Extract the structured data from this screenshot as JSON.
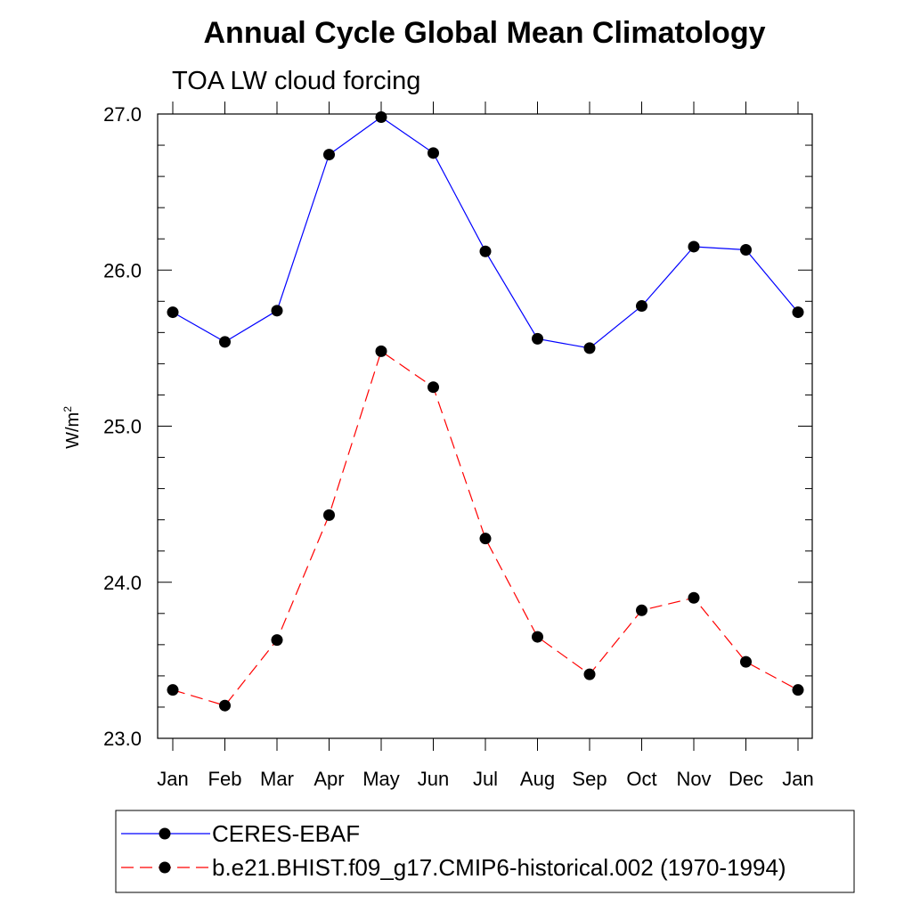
{
  "chart_data": {
    "type": "line",
    "title": "Annual Cycle Global Mean Climatology",
    "subtitle": "TOA LW cloud forcing",
    "ylabel": "W/m",
    "ylabel_sup": "2",
    "ylim": [
      23.0,
      27.0
    ],
    "yticks": [
      "23.0",
      "24.0",
      "25.0",
      "26.0",
      "27.0"
    ],
    "categories": [
      "Jan",
      "Feb",
      "Mar",
      "Apr",
      "May",
      "Jun",
      "Jul",
      "Aug",
      "Sep",
      "Oct",
      "Nov",
      "Dec",
      "Jan"
    ],
    "series": [
      {
        "name": "CERES-EBAF",
        "color": "#0000ff",
        "line_style": "solid",
        "marker": "filled-circle",
        "values": [
          25.73,
          25.54,
          25.74,
          26.74,
          26.98,
          26.75,
          26.12,
          25.56,
          25.5,
          25.77,
          26.15,
          26.13,
          25.73
        ]
      },
      {
        "name": "b.e21.BHIST.f09_g17.CMIP6-historical.002 (1970-1994)",
        "color": "#ff0000",
        "line_style": "dashed",
        "marker": "filled-circle",
        "values": [
          23.31,
          23.21,
          23.63,
          24.43,
          25.48,
          25.25,
          24.28,
          23.65,
          23.41,
          23.82,
          23.9,
          23.49,
          23.31
        ]
      }
    ],
    "legend_position": "bottom"
  }
}
